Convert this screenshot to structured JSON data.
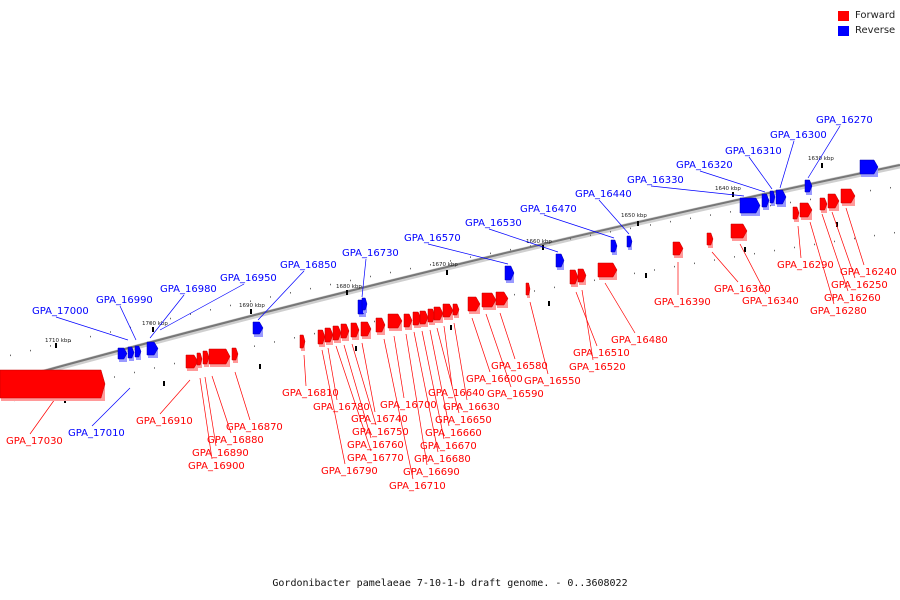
{
  "legend": {
    "forward_label": "Forward",
    "reverse_label": "Reverse",
    "forward_color": "#ff0000",
    "reverse_color": "#0000ff"
  },
  "caption": "Gordonibacter pamelaeae 7-10-1-b draft genome. - 0..3608022",
  "scale_ticks": [
    "1710 kbp",
    "1700 kbp",
    "1690 kbp",
    "1680 kbp",
    "1670 kbp",
    "1660 kbp",
    "1650 kbp",
    "1640 kbp",
    "1630 kbp"
  ],
  "genes": [
    {
      "id": "GPA_17030",
      "strand": "forward"
    },
    {
      "id": "GPA_17010",
      "strand": "reverse"
    },
    {
      "id": "GPA_17000",
      "strand": "reverse"
    },
    {
      "id": "GPA_16990",
      "strand": "reverse"
    },
    {
      "id": "GPA_16980",
      "strand": "reverse"
    },
    {
      "id": "GPA_16950",
      "strand": "reverse"
    },
    {
      "id": "GPA_16910",
      "strand": "forward"
    },
    {
      "id": "GPA_16900",
      "strand": "forward"
    },
    {
      "id": "GPA_16890",
      "strand": "forward"
    },
    {
      "id": "GPA_16880",
      "strand": "forward"
    },
    {
      "id": "GPA_16870",
      "strand": "forward"
    },
    {
      "id": "GPA_16850",
      "strand": "reverse"
    },
    {
      "id": "GPA_16810",
      "strand": "forward"
    },
    {
      "id": "GPA_16790",
      "strand": "forward"
    },
    {
      "id": "GPA_16780",
      "strand": "forward"
    },
    {
      "id": "GPA_16770",
      "strand": "forward"
    },
    {
      "id": "GPA_16760",
      "strand": "forward"
    },
    {
      "id": "GPA_16750",
      "strand": "forward"
    },
    {
      "id": "GPA_16740",
      "strand": "forward"
    },
    {
      "id": "GPA_16730",
      "strand": "reverse"
    },
    {
      "id": "GPA_16710",
      "strand": "forward"
    },
    {
      "id": "GPA_16700",
      "strand": "forward"
    },
    {
      "id": "GPA_16690",
      "strand": "forward"
    },
    {
      "id": "GPA_16680",
      "strand": "forward"
    },
    {
      "id": "GPA_16670",
      "strand": "forward"
    },
    {
      "id": "GPA_16660",
      "strand": "forward"
    },
    {
      "id": "GPA_16650",
      "strand": "forward"
    },
    {
      "id": "GPA_16640",
      "strand": "forward"
    },
    {
      "id": "GPA_16630",
      "strand": "forward"
    },
    {
      "id": "GPA_16600",
      "strand": "forward"
    },
    {
      "id": "GPA_16590",
      "strand": "forward"
    },
    {
      "id": "GPA_16580",
      "strand": "forward"
    },
    {
      "id": "GPA_16570",
      "strand": "reverse"
    },
    {
      "id": "GPA_16550",
      "strand": "forward"
    },
    {
      "id": "GPA_16530",
      "strand": "reverse"
    },
    {
      "id": "GPA_16520",
      "strand": "forward"
    },
    {
      "id": "GPA_16510",
      "strand": "forward"
    },
    {
      "id": "GPA_16480",
      "strand": "forward"
    },
    {
      "id": "GPA_16470",
      "strand": "reverse"
    },
    {
      "id": "GPA_16440",
      "strand": "reverse"
    },
    {
      "id": "GPA_16390",
      "strand": "forward"
    },
    {
      "id": "GPA_16360",
      "strand": "forward"
    },
    {
      "id": "GPA_16340",
      "strand": "forward"
    },
    {
      "id": "GPA_16330",
      "strand": "reverse"
    },
    {
      "id": "GPA_16320",
      "strand": "reverse"
    },
    {
      "id": "GPA_16310",
      "strand": "reverse"
    },
    {
      "id": "GPA_16300",
      "strand": "reverse"
    },
    {
      "id": "GPA_16290",
      "strand": "forward"
    },
    {
      "id": "GPA_16280",
      "strand": "forward"
    },
    {
      "id": "GPA_16270",
      "strand": "reverse"
    },
    {
      "id": "GPA_16260",
      "strand": "forward"
    },
    {
      "id": "GPA_16250",
      "strand": "forward"
    },
    {
      "id": "GPA_16240",
      "strand": "forward"
    }
  ]
}
